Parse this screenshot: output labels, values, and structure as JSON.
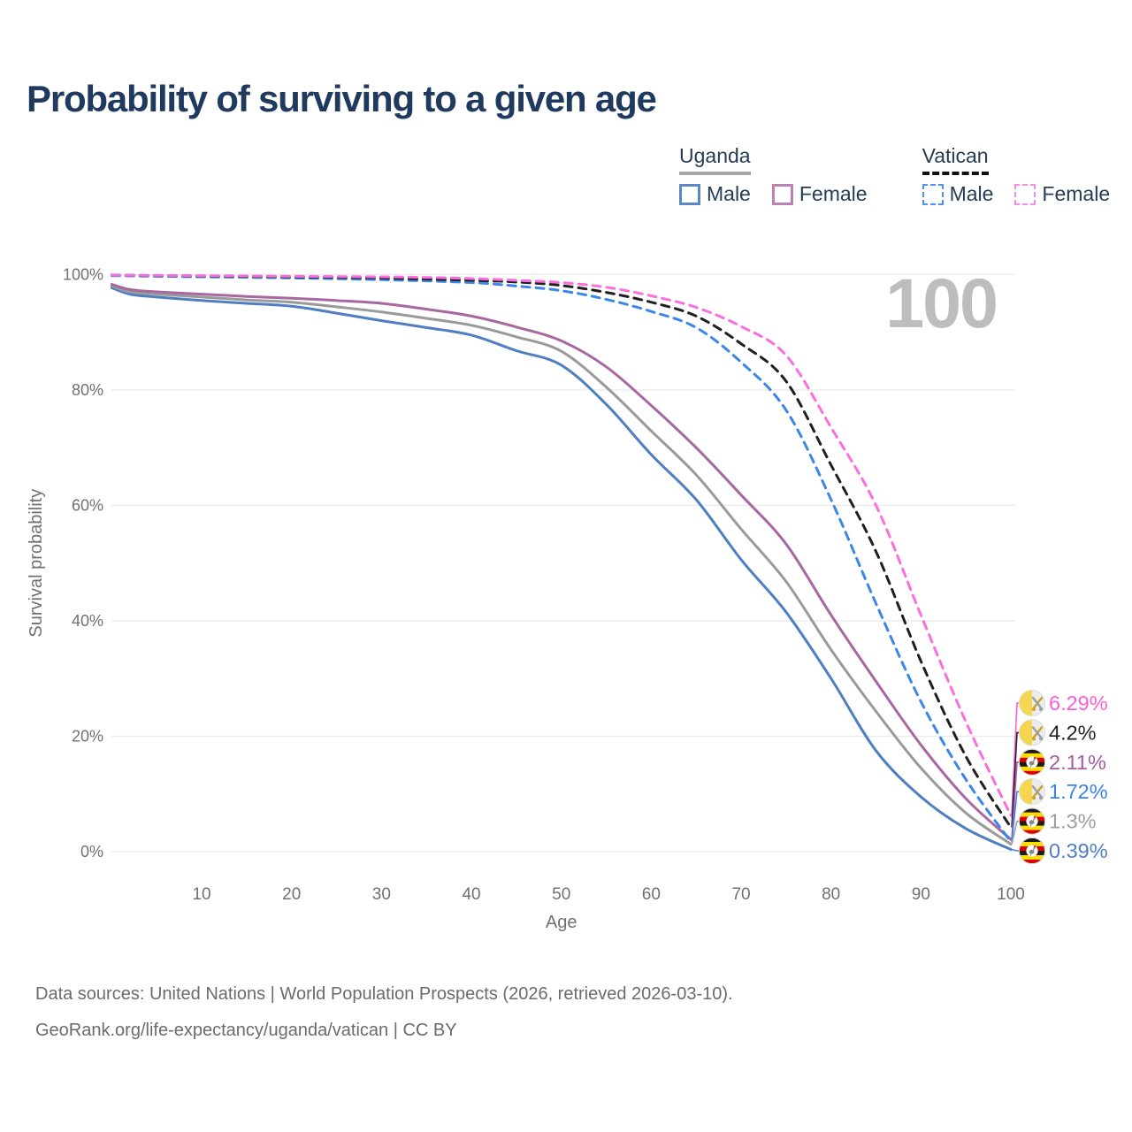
{
  "title": "Probability of surviving to a given age",
  "watermark": "100",
  "legend": {
    "groups": [
      {
        "name": "Uganda",
        "line_style": "solid",
        "underline_color": "#a6a6a6",
        "items": [
          {
            "label": "Male",
            "color": "#5b86c8"
          },
          {
            "label": "Female",
            "color": "#bc82b6"
          }
        ]
      },
      {
        "name": "Vatican",
        "line_style": "dashed",
        "underline_color": "#111111",
        "items": [
          {
            "label": "Male",
            "color": "#4d94f5"
          },
          {
            "label": "Female",
            "color": "#fb8ae3"
          }
        ]
      }
    ]
  },
  "chart_data": {
    "type": "line",
    "title": "Probability of surviving to a given age",
    "xlabel": "Age",
    "ylabel": "Survival probability",
    "xlim": [
      0,
      100.3
    ],
    "ylim": [
      0,
      100
    ],
    "x_ticks": [
      10,
      20,
      30,
      40,
      50,
      60,
      70,
      80,
      90,
      100
    ],
    "y_ticks": [
      {
        "v": 0,
        "label": "0%"
      },
      {
        "v": 20,
        "label": "20%"
      },
      {
        "v": 40,
        "label": "40%"
      },
      {
        "v": 60,
        "label": "60%"
      },
      {
        "v": 80,
        "label": "80%"
      },
      {
        "v": 100,
        "label": "100%"
      }
    ],
    "grid": "horizontal",
    "legend_position": "top-right",
    "series": [
      {
        "name": "Uganda Male",
        "country": "Uganda",
        "sex": "male",
        "color": "#4f7ec3",
        "dash": false,
        "end_value": 0.39,
        "points": [
          [
            0,
            97.7
          ],
          [
            2,
            96.6
          ],
          [
            5,
            96.1
          ],
          [
            10,
            95.5
          ],
          [
            15,
            95.0
          ],
          [
            20,
            94.5
          ],
          [
            25,
            93.3
          ],
          [
            30,
            92.0
          ],
          [
            35,
            90.8
          ],
          [
            40,
            89.5
          ],
          [
            45,
            86.8
          ],
          [
            50,
            84.3
          ],
          [
            55,
            77.5
          ],
          [
            60,
            68.8
          ],
          [
            65,
            61.0
          ],
          [
            70,
            50.6
          ],
          [
            75,
            41.5
          ],
          [
            80,
            30.0
          ],
          [
            85,
            17.5
          ],
          [
            90,
            9.5
          ],
          [
            95,
            4.0
          ],
          [
            100,
            0.39
          ]
        ]
      },
      {
        "name": "Uganda Total",
        "country": "Uganda",
        "sex": "both",
        "color": "#9a9a9a",
        "dash": false,
        "end_value": 1.3,
        "points": [
          [
            0,
            98.0
          ],
          [
            2,
            97.0
          ],
          [
            5,
            96.6
          ],
          [
            10,
            96.1
          ],
          [
            15,
            95.6
          ],
          [
            20,
            95.2
          ],
          [
            25,
            94.4
          ],
          [
            30,
            93.5
          ],
          [
            35,
            92.4
          ],
          [
            40,
            91.2
          ],
          [
            45,
            89.2
          ],
          [
            50,
            86.7
          ],
          [
            55,
            80.5
          ],
          [
            60,
            72.9
          ],
          [
            65,
            65.3
          ],
          [
            70,
            55.9
          ],
          [
            75,
            46.8
          ],
          [
            80,
            35.0
          ],
          [
            85,
            24.3
          ],
          [
            90,
            14.5
          ],
          [
            95,
            6.7
          ],
          [
            100,
            1.3
          ]
        ]
      },
      {
        "name": "Uganda Female",
        "country": "Uganda",
        "sex": "female",
        "color": "#a768a2",
        "dash": false,
        "end_value": 2.11,
        "points": [
          [
            0,
            98.3
          ],
          [
            2,
            97.4
          ],
          [
            5,
            97.0
          ],
          [
            10,
            96.6
          ],
          [
            15,
            96.2
          ],
          [
            20,
            95.9
          ],
          [
            25,
            95.5
          ],
          [
            30,
            95.0
          ],
          [
            35,
            94.0
          ],
          [
            40,
            92.8
          ],
          [
            45,
            90.9
          ],
          [
            50,
            88.5
          ],
          [
            55,
            84.0
          ],
          [
            60,
            77.3
          ],
          [
            65,
            70.0
          ],
          [
            70,
            61.8
          ],
          [
            75,
            53.3
          ],
          [
            80,
            41.0
          ],
          [
            85,
            29.5
          ],
          [
            90,
            18.5
          ],
          [
            95,
            9.2
          ],
          [
            100,
            2.11
          ]
        ]
      },
      {
        "name": "Vatican Male",
        "country": "Vatican",
        "sex": "male",
        "color": "#3b87e8",
        "dash": true,
        "end_value": 1.72,
        "points": [
          [
            0,
            99.8
          ],
          [
            10,
            99.6
          ],
          [
            20,
            99.4
          ],
          [
            30,
            99.1
          ],
          [
            40,
            98.6
          ],
          [
            45,
            98.0
          ],
          [
            50,
            97.2
          ],
          [
            55,
            95.7
          ],
          [
            60,
            93.6
          ],
          [
            65,
            90.8
          ],
          [
            70,
            84.8
          ],
          [
            75,
            76.5
          ],
          [
            80,
            61.0
          ],
          [
            85,
            43.0
          ],
          [
            90,
            26.0
          ],
          [
            95,
            12.5
          ],
          [
            100,
            1.72
          ]
        ]
      },
      {
        "name": "Vatican Total",
        "country": "Vatican",
        "sex": "both",
        "color": "#1f1f1f",
        "dash": true,
        "end_value": 4.2,
        "points": [
          [
            0,
            99.9
          ],
          [
            10,
            99.75
          ],
          [
            20,
            99.6
          ],
          [
            30,
            99.4
          ],
          [
            40,
            99.0
          ],
          [
            45,
            98.7
          ],
          [
            50,
            98.1
          ],
          [
            55,
            96.9
          ],
          [
            60,
            95.2
          ],
          [
            65,
            92.8
          ],
          [
            70,
            88.0
          ],
          [
            75,
            81.5
          ],
          [
            80,
            67.0
          ],
          [
            85,
            52.0
          ],
          [
            90,
            33.0
          ],
          [
            95,
            16.5
          ],
          [
            100,
            4.2
          ]
        ]
      },
      {
        "name": "Vatican Female",
        "country": "Vatican",
        "sex": "female",
        "color": "#fb6fdc",
        "dash": true,
        "end_value": 6.29,
        "points": [
          [
            0,
            99.9
          ],
          [
            10,
            99.8
          ],
          [
            20,
            99.7
          ],
          [
            30,
            99.6
          ],
          [
            35,
            99.5
          ],
          [
            40,
            99.3
          ],
          [
            45,
            99.0
          ],
          [
            50,
            98.6
          ],
          [
            55,
            97.8
          ],
          [
            60,
            96.3
          ],
          [
            65,
            94.3
          ],
          [
            70,
            91.0
          ],
          [
            75,
            86.0
          ],
          [
            80,
            73.5
          ],
          [
            85,
            60.0
          ],
          [
            90,
            41.0
          ],
          [
            95,
            22.5
          ],
          [
            100,
            6.29
          ]
        ]
      }
    ]
  },
  "end_labels": [
    {
      "text": "6.29%",
      "value": 6.29,
      "flag": "vatican",
      "color": "#fb5fd7",
      "series": "Vatican Female"
    },
    {
      "text": "4.2%",
      "value": 4.2,
      "flag": "vatican",
      "color": "#222222",
      "series": "Vatican Total"
    },
    {
      "text": "2.11%",
      "value": 2.11,
      "flag": "uganda",
      "color": "#a55ca0",
      "series": "Uganda Female"
    },
    {
      "text": "1.72%",
      "value": 1.72,
      "flag": "vatican",
      "color": "#3b82f0",
      "series": "Vatican Male"
    },
    {
      "text": "1.3%",
      "value": 1.3,
      "flag": "uganda",
      "color": "#9e9e9e",
      "series": "Uganda Total"
    },
    {
      "text": "0.39%",
      "value": 0.39,
      "flag": "uganda",
      "color": "#4f7ec3",
      "series": "Uganda Male"
    }
  ],
  "footer": {
    "line1": "Data sources: United Nations | World Population Prospects (2026, retrieved 2026-03-10).",
    "line2": "GeoRank.org/life-expectancy/uganda/vatican | CC BY"
  }
}
